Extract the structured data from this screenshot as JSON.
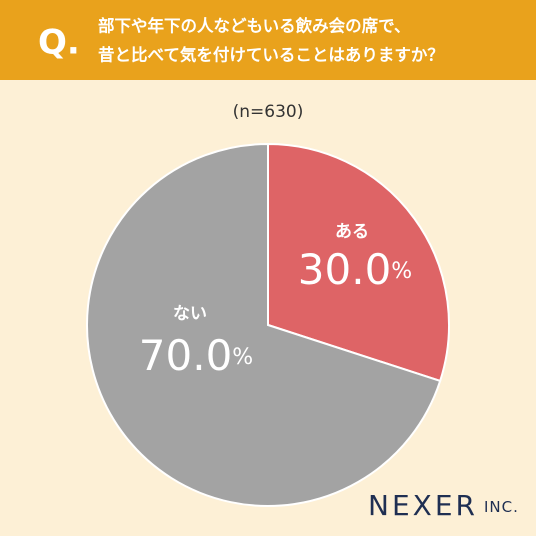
{
  "chart_data": {
    "type": "pie",
    "title_marker": "Q.",
    "title": [
      "部下や年下の人などもいる飲み会の席で、",
      "昔と比べて気を付けていることはありますか？"
    ],
    "subtitle": "(n=630)",
    "categories": [
      "ある",
      "ない"
    ],
    "values": [
      30.0,
      70.0
    ],
    "value_labels": [
      "30.0%",
      "70.0%"
    ],
    "colors": [
      "#de6466",
      "#a3a3a3"
    ],
    "logo": {
      "name": "NEXER",
      "suffix": "INC."
    }
  }
}
